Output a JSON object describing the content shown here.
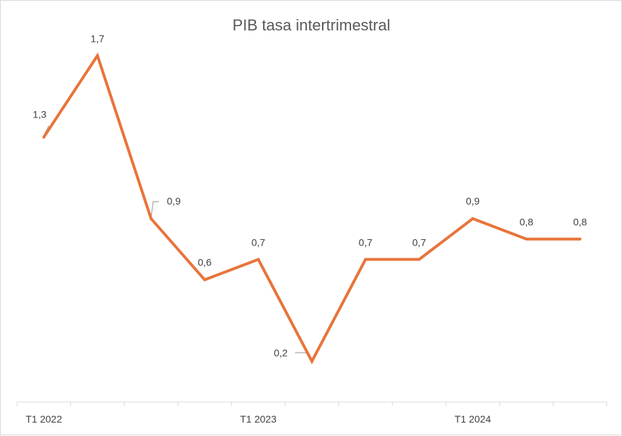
{
  "chart_data": {
    "type": "line",
    "title": "PIB tasa intertrimestral",
    "xlabel": "",
    "ylabel": "",
    "categories": [
      "T1 2022",
      "",
      "",
      "",
      "T1 2023",
      "",
      "",
      "",
      "T1 2024",
      "",
      ""
    ],
    "series": [
      {
        "values": [
          1.3,
          1.7,
          0.9,
          0.6,
          0.7,
          0.2,
          0.7,
          0.7,
          0.9,
          0.8,
          0.8
        ],
        "labels": [
          "1,3",
          "1,7",
          "0,9",
          "0,6",
          "0,7",
          "0,2",
          "0,7",
          "0,7",
          "0,9",
          "0,8",
          "0,8"
        ],
        "color": "#e8743b"
      }
    ],
    "ylim": [
      0,
      1.9
    ],
    "grid": false,
    "legend": "none",
    "axis_color": "#d9d9d9"
  }
}
